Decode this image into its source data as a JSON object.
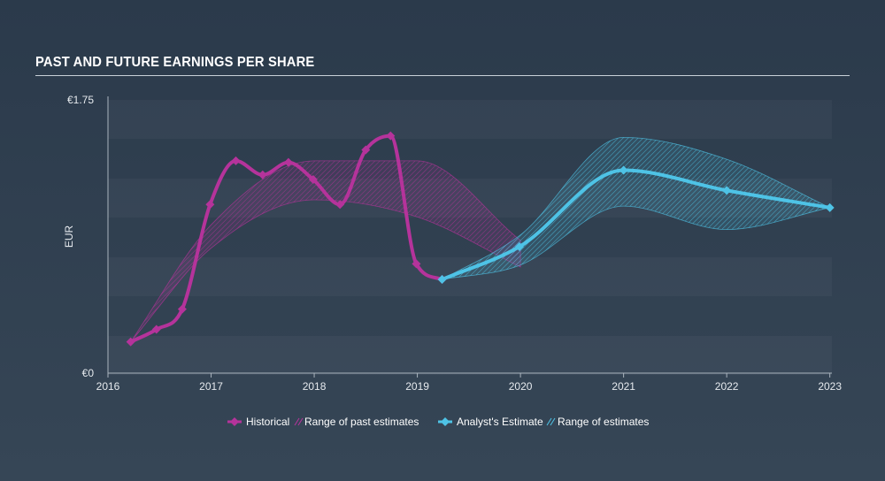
{
  "title": "PAST AND FUTURE EARNINGS PER SHARE",
  "chart_data": {
    "type": "line",
    "ylabel": "EUR",
    "xlabel": "",
    "ylim": [
      0,
      1.75
    ],
    "xlim": [
      2016,
      2023.02
    ],
    "y_tick_labels": [
      "€1.75",
      "€0"
    ],
    "y_tick_values": [
      1.75,
      0
    ],
    "x_ticks": [
      2016,
      2017,
      2018,
      2019,
      2020,
      2021,
      2022,
      2023
    ],
    "x_tick_labels": [
      "2016",
      "2017",
      "2018",
      "2019",
      "2020",
      "2021",
      "2022",
      "2023"
    ],
    "grid": "horizontal bands",
    "colors": {
      "historical": "#b5339b",
      "past_range": "#b5339b",
      "estimate": "#4ec3e6",
      "estimate_range": "#4ec3e6"
    },
    "series": [
      {
        "name": "Historical",
        "x": [
          2016.22,
          2016.47,
          2016.72,
          2016.99,
          2017.24,
          2017.5,
          2017.75,
          2017.99,
          2018.25,
          2018.5,
          2018.74,
          2018.99,
          2019.24
        ],
        "y": [
          0.2,
          0.28,
          0.41,
          1.08,
          1.36,
          1.27,
          1.35,
          1.24,
          1.08,
          1.43,
          1.52,
          0.7,
          0.6
        ]
      },
      {
        "name": "Analyst's Estimate",
        "x": [
          2019.24,
          2019.99,
          2021.0,
          2022.0,
          2023.0
        ],
        "y": [
          0.6,
          0.81,
          1.3,
          1.17,
          1.06
        ]
      }
    ],
    "ranges": [
      {
        "name": "Range of past estimates",
        "x": [
          2016.22,
          2017.0,
          2018.0,
          2019.0,
          2020.0
        ],
        "upper": [
          0.2,
          0.95,
          1.36,
          1.36,
          0.85
        ],
        "lower": [
          0.2,
          0.8,
          1.11,
          1.0,
          0.68
        ]
      },
      {
        "name": "Range of estimates",
        "x": [
          2019.24,
          2019.99,
          2021.0,
          2022.0,
          2023.0
        ],
        "upper": [
          0.6,
          0.88,
          1.51,
          1.37,
          1.06
        ],
        "lower": [
          0.6,
          0.69,
          1.07,
          0.92,
          1.06
        ]
      }
    ],
    "legend": {
      "placement": "bottom-center",
      "items": [
        "Historical",
        "Range of past estimates",
        "Analyst's Estimate",
        "Range of estimates"
      ]
    }
  }
}
